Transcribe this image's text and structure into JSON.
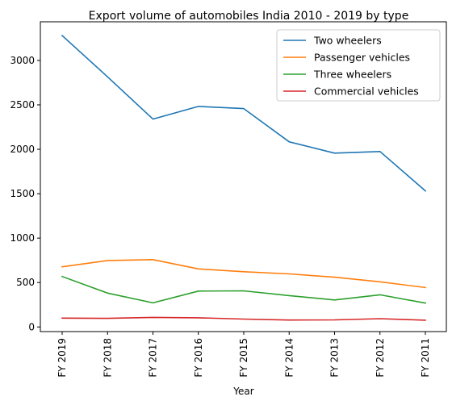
{
  "chart_data": {
    "type": "line",
    "title": "Export volume of automobiles India 2010 - 2019 by type",
    "xlabel": "Year",
    "ylabel": "",
    "categories": [
      "FY 2019",
      "FY 2018",
      "FY 2017",
      "FY 2016",
      "FY 2015",
      "FY 2014",
      "FY 2013",
      "FY 2012",
      "FY 2011"
    ],
    "ylim": [
      -52,
      3435
    ],
    "yticks": [
      0,
      500,
      1000,
      1500,
      2000,
      2500,
      3000
    ],
    "grid": false,
    "legend_position": "top-right",
    "series": [
      {
        "name": "Two wheelers",
        "color": "#1f77b4",
        "values": [
          3280,
          2815,
          2340,
          2482,
          2458,
          2084,
          1957,
          1975,
          1532
        ]
      },
      {
        "name": "Passenger vehicles",
        "color": "#ff7f0e",
        "values": [
          677,
          748,
          758,
          654,
          622,
          597,
          560,
          508,
          444
        ]
      },
      {
        "name": "Three wheelers",
        "color": "#2ca02c",
        "values": [
          568,
          381,
          271,
          404,
          407,
          353,
          304,
          362,
          269
        ]
      },
      {
        "name": "Commercial vehicles",
        "color": "#d62728",
        "values": [
          100,
          97,
          108,
          103,
          89,
          78,
          80,
          93,
          76
        ]
      }
    ]
  }
}
